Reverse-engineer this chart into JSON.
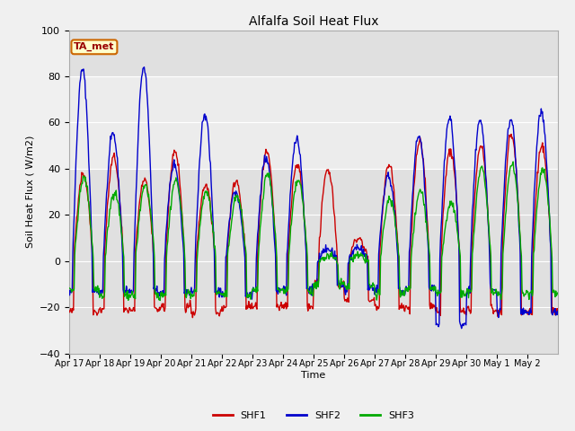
{
  "title": "Alfalfa Soil Heat Flux",
  "ylabel": "Soil Heat Flux ( W/m2)",
  "xlabel": "Time",
  "ylim": [
    -40,
    100
  ],
  "yticks": [
    -40,
    -20,
    0,
    20,
    40,
    60,
    80,
    100
  ],
  "shaded_region": [
    40,
    80
  ],
  "bg_color": "#e0e0e0",
  "shaded_color": "#ececec",
  "line_colors": {
    "SHF1": "#cc0000",
    "SHF2": "#0000cc",
    "SHF3": "#00aa00"
  },
  "line_width": 1.0,
  "ta_met_box": {
    "text": "TA_met",
    "text_color": "#990000",
    "bg_color": "#ffffcc",
    "border_color": "#cc6600"
  },
  "xtick_labels": [
    "Apr 17",
    "Apr 18",
    "Apr 19",
    "Apr 20",
    "Apr 21",
    "Apr 22",
    "Apr 23",
    "Apr 24",
    "Apr 25",
    "Apr 26",
    "Apr 27",
    "Apr 28",
    "Apr 29",
    "Apr 30",
    "May 1",
    "May 2"
  ],
  "n_days": 16,
  "pts_per_day": 48
}
